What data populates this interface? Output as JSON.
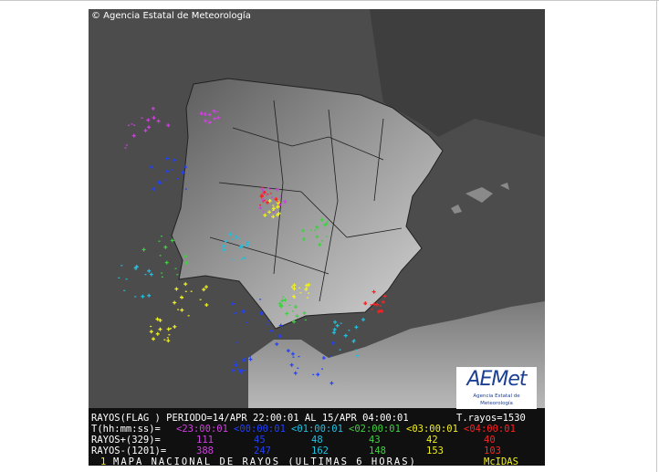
{
  "copyright": "© Agencia Estatal de Meteorología",
  "logo": {
    "name": "AEMet",
    "subtitle": "Agencia Estatal de Meteorología"
  },
  "info": {
    "period": "RAYOS(FLAG ) PERIODO=14/APR 22:00:01 AL 15/APR 04:00:01",
    "total": "T.rayos=1530",
    "time_label": "T(hh:mm:ss)=",
    "positive_label": "RAYOS+(329)=",
    "negative_label": "RAYOS-(1201)="
  },
  "intervals": [
    {
      "time": "<23:00:01",
      "color": "#d040e0",
      "positive": 111,
      "negative": 388
    },
    {
      "time": "<00:00:01",
      "color": "#2040ff",
      "positive": 45,
      "negative": 247
    },
    {
      "time": "<01:00:01",
      "color": "#20c0e0",
      "positive": 48,
      "negative": 162
    },
    {
      "time": "<02:00:01",
      "color": "#40d040",
      "positive": 43,
      "negative": 148
    },
    {
      "time": "<03:00:01",
      "color": "#f0f020",
      "positive": 42,
      "negative": 153
    },
    {
      "time": "<04:00:01",
      "color": "#ff2020",
      "positive": 40,
      "negative": 103
    }
  ],
  "footer": {
    "number": "1",
    "title": "MAPA NACIONAL DE RAYOS (ULTIMAS 6 HORAS)",
    "source": "McIDAS"
  }
}
